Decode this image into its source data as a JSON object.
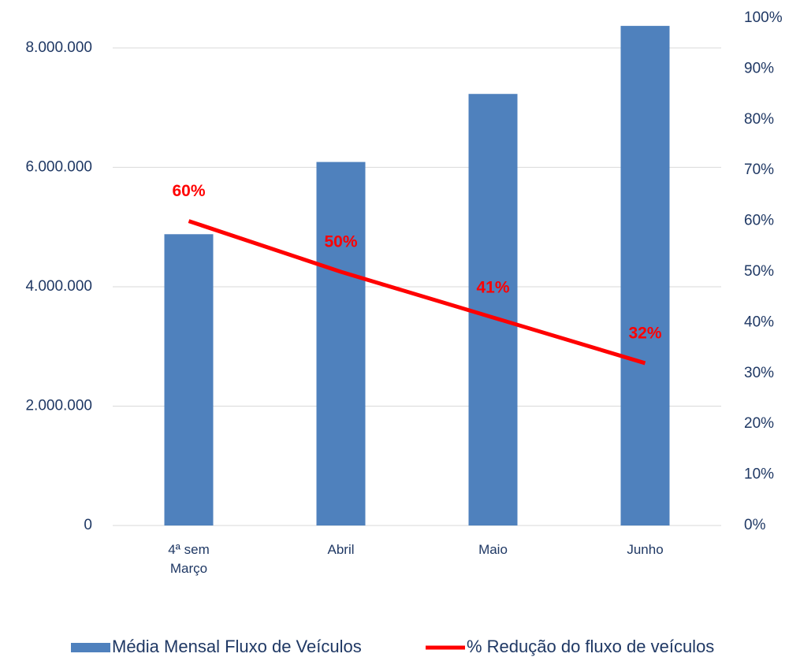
{
  "chart_data": {
    "type": "bar_line",
    "categories": [
      "4ª sem Março",
      "Abril",
      "Maio",
      "Junho"
    ],
    "series": [
      {
        "name": "Média Mensal Fluxo de Veículos",
        "type": "bar",
        "color": "#4f81bd",
        "values": [
          4880000,
          6090000,
          7230000,
          8370000
        ]
      },
      {
        "name": "% Redução do fluxo de veículos",
        "type": "line",
        "axis": "y2",
        "color": "#ff0000",
        "values": [
          60,
          50,
          41,
          32
        ],
        "value_labels": [
          "60%",
          "50%",
          "41%",
          "32%"
        ]
      }
    ],
    "ylim": [
      0,
      8500000
    ],
    "yticks": [
      0,
      {
        "value": 2000000,
        "label": "2.000.000"
      },
      {
        "value": 4000000,
        "label": "4.000.000"
      },
      {
        "value": 6000000,
        "label": "6.000.000"
      },
      {
        "value": 8000000,
        "label": "8.000.000"
      }
    ],
    "y2lim": [
      0,
      100
    ],
    "y2ticks": [
      {
        "value": 0,
        "label": "0%"
      },
      {
        "value": 10,
        "label": "10%"
      },
      {
        "value": 20,
        "label": "20%"
      },
      {
        "value": 30,
        "label": "30%"
      },
      {
        "value": 40,
        "label": "40%"
      },
      {
        "value": 50,
        "label": "50%"
      },
      {
        "value": 60,
        "label": "60%"
      },
      {
        "value": 70,
        "label": "70%"
      },
      {
        "value": 80,
        "label": "80%"
      },
      {
        "value": 90,
        "label": "90%"
      },
      {
        "value": 100,
        "label": "100%"
      }
    ],
    "grid": true,
    "legend": "bottom"
  }
}
